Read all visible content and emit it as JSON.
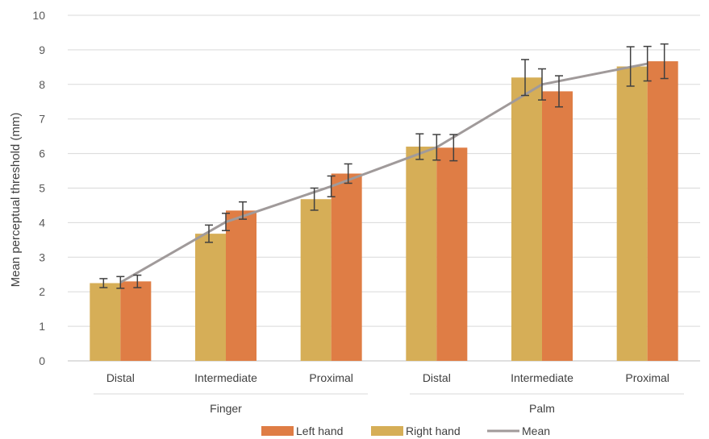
{
  "chart_data": {
    "type": "bar",
    "ylabel": "Mean perceptual threshold (mm)",
    "ylim": [
      0,
      10
    ],
    "yticks": [
      0,
      1,
      2,
      3,
      4,
      5,
      6,
      7,
      8,
      9,
      10
    ],
    "grid": true,
    "legend_position": "bottom",
    "categories": [
      "Distal",
      "Intermediate",
      "Proximal",
      "Distal",
      "Intermediate",
      "Proximal"
    ],
    "groups": [
      {
        "label": "Finger",
        "categories": [
          "Distal",
          "Intermediate",
          "Proximal"
        ]
      },
      {
        "label": "Palm",
        "categories": [
          "Distal",
          "Intermediate",
          "Proximal"
        ]
      }
    ],
    "series": [
      {
        "name": "Right hand",
        "type": "bar",
        "color": "#D6AE57",
        "values": [
          2.25,
          3.68,
          4.68,
          6.2,
          8.2,
          8.52
        ],
        "errors": [
          0.13,
          0.25,
          0.32,
          0.37,
          0.52,
          0.57
        ]
      },
      {
        "name": "Left hand",
        "type": "bar",
        "color": "#DF7D45",
        "values": [
          2.3,
          4.35,
          5.42,
          6.17,
          7.8,
          8.67
        ],
        "errors": [
          0.18,
          0.25,
          0.28,
          0.38,
          0.45,
          0.5
        ]
      },
      {
        "name": "Mean",
        "type": "line",
        "color": "#A09A9A",
        "values": [
          2.27,
          4.02,
          5.05,
          6.18,
          8.0,
          8.6
        ],
        "errors": [
          0.17,
          0.25,
          0.3,
          0.37,
          0.45,
          0.5
        ]
      }
    ],
    "legend_order": [
      "Left hand",
      "Right hand",
      "Mean"
    ]
  }
}
